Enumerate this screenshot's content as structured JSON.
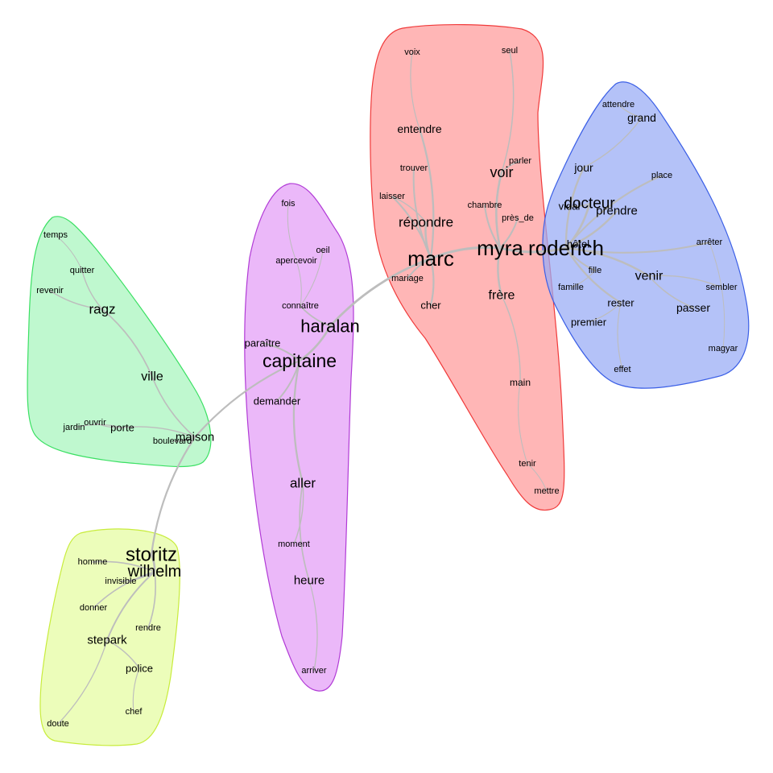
{
  "clusters": [
    {
      "id": "red",
      "fill": "#ff9a9a",
      "stroke": "#f03a3a"
    },
    {
      "id": "blue",
      "fill": "#97abf5",
      "stroke": "#3b5fe6"
    },
    {
      "id": "purple",
      "fill": "#e39cf7",
      "stroke": "#b13bd6"
    },
    {
      "id": "green",
      "fill": "#a6f5bd",
      "stroke": "#3be063"
    },
    {
      "id": "yellow",
      "fill": "#e5fca0",
      "stroke": "#c8ec3c"
    }
  ],
  "words": [
    {
      "id": "voix",
      "text": "voix",
      "cluster": "red"
    },
    {
      "id": "seul",
      "text": "seul",
      "cluster": "red"
    },
    {
      "id": "entendre",
      "text": "entendre",
      "cluster": "red"
    },
    {
      "id": "trouver",
      "text": "trouver",
      "cluster": "red"
    },
    {
      "id": "parler",
      "text": "parler",
      "cluster": "red"
    },
    {
      "id": "voir",
      "text": "voir",
      "cluster": "red"
    },
    {
      "id": "laisser",
      "text": "laisser",
      "cluster": "red"
    },
    {
      "id": "chambre",
      "text": "chambre",
      "cluster": "red"
    },
    {
      "id": "pres_de",
      "text": "près_de",
      "cluster": "red"
    },
    {
      "id": "repondre",
      "text": "répondre",
      "cluster": "red"
    },
    {
      "id": "marc",
      "text": "marc",
      "cluster": "red"
    },
    {
      "id": "myra",
      "text": "myra",
      "cluster": "red"
    },
    {
      "id": "mariage",
      "text": "mariage",
      "cluster": "red"
    },
    {
      "id": "cher",
      "text": "cher",
      "cluster": "red"
    },
    {
      "id": "frere",
      "text": "frère",
      "cluster": "red"
    },
    {
      "id": "main",
      "text": "main",
      "cluster": "red"
    },
    {
      "id": "tenir",
      "text": "tenir",
      "cluster": "red"
    },
    {
      "id": "mettre",
      "text": "mettre",
      "cluster": "red"
    },
    {
      "id": "attendre",
      "text": "attendre",
      "cluster": "blue"
    },
    {
      "id": "grand",
      "text": "grand",
      "cluster": "blue"
    },
    {
      "id": "jour",
      "text": "jour",
      "cluster": "blue"
    },
    {
      "id": "place",
      "text": "place",
      "cluster": "blue"
    },
    {
      "id": "docteur",
      "text": "docteur",
      "cluster": "blue"
    },
    {
      "id": "vidal",
      "text": "vidal",
      "cluster": "blue"
    },
    {
      "id": "prendre",
      "text": "prendre",
      "cluster": "blue"
    },
    {
      "id": "roderich",
      "text": "roderich",
      "cluster": "blue"
    },
    {
      "id": "hotel",
      "text": "hôtel",
      "cluster": "blue"
    },
    {
      "id": "arreter",
      "text": "arrêter",
      "cluster": "blue"
    },
    {
      "id": "fille",
      "text": "fille",
      "cluster": "blue"
    },
    {
      "id": "venir",
      "text": "venir",
      "cluster": "blue"
    },
    {
      "id": "famille",
      "text": "famille",
      "cluster": "blue"
    },
    {
      "id": "sembler",
      "text": "sembler",
      "cluster": "blue"
    },
    {
      "id": "rester",
      "text": "rester",
      "cluster": "blue"
    },
    {
      "id": "passer",
      "text": "passer",
      "cluster": "blue"
    },
    {
      "id": "premier",
      "text": "premier",
      "cluster": "blue"
    },
    {
      "id": "magyar",
      "text": "magyar",
      "cluster": "blue"
    },
    {
      "id": "effet",
      "text": "effet",
      "cluster": "blue"
    },
    {
      "id": "fois",
      "text": "fois",
      "cluster": "purple"
    },
    {
      "id": "oeil",
      "text": "oeil",
      "cluster": "purple"
    },
    {
      "id": "apercevoir",
      "text": "apercevoir",
      "cluster": "purple"
    },
    {
      "id": "connaitre",
      "text": "connaître",
      "cluster": "purple"
    },
    {
      "id": "haralan",
      "text": "haralan",
      "cluster": "purple"
    },
    {
      "id": "paraitre",
      "text": "paraître",
      "cluster": "purple"
    },
    {
      "id": "capitaine",
      "text": "capitaine",
      "cluster": "purple"
    },
    {
      "id": "demander",
      "text": "demander",
      "cluster": "purple"
    },
    {
      "id": "aller",
      "text": "aller",
      "cluster": "purple"
    },
    {
      "id": "moment",
      "text": "moment",
      "cluster": "purple"
    },
    {
      "id": "heure",
      "text": "heure",
      "cluster": "purple"
    },
    {
      "id": "arriver",
      "text": "arriver",
      "cluster": "purple"
    },
    {
      "id": "temps",
      "text": "temps",
      "cluster": "green"
    },
    {
      "id": "quitter",
      "text": "quitter",
      "cluster": "green"
    },
    {
      "id": "revenir",
      "text": "revenir",
      "cluster": "green"
    },
    {
      "id": "ragz",
      "text": "ragz",
      "cluster": "green"
    },
    {
      "id": "ville",
      "text": "ville",
      "cluster": "green"
    },
    {
      "id": "jardin",
      "text": "jardin",
      "cluster": "green"
    },
    {
      "id": "ouvrir",
      "text": "ouvrir",
      "cluster": "green"
    },
    {
      "id": "porte",
      "text": "porte",
      "cluster": "green"
    },
    {
      "id": "maison",
      "text": "maison",
      "cluster": "green"
    },
    {
      "id": "boulevard",
      "text": "boulevard",
      "cluster": "green"
    },
    {
      "id": "storitz",
      "text": "storitz",
      "cluster": "yellow"
    },
    {
      "id": "homme",
      "text": "homme",
      "cluster": "yellow"
    },
    {
      "id": "wilhelm",
      "text": "wilhelm",
      "cluster": "yellow"
    },
    {
      "id": "invisible",
      "text": "invisible",
      "cluster": "yellow"
    },
    {
      "id": "donner",
      "text": "donner",
      "cluster": "yellow"
    },
    {
      "id": "rendre",
      "text": "rendre",
      "cluster": "yellow"
    },
    {
      "id": "stepark",
      "text": "stepark",
      "cluster": "yellow"
    },
    {
      "id": "police",
      "text": "police",
      "cluster": "yellow"
    },
    {
      "id": "chef",
      "text": "chef",
      "cluster": "yellow"
    },
    {
      "id": "doute",
      "text": "doute",
      "cluster": "yellow"
    }
  ],
  "edges": [
    [
      "marc",
      "myra"
    ],
    [
      "myra",
      "roderich"
    ],
    [
      "marc",
      "repondre"
    ],
    [
      "marc",
      "mariage"
    ],
    [
      "marc",
      "cher"
    ],
    [
      "marc",
      "laisser"
    ],
    [
      "marc",
      "trouver"
    ],
    [
      "marc",
      "entendre"
    ],
    [
      "entendre",
      "voix"
    ],
    [
      "repondre",
      "laisser"
    ],
    [
      "myra",
      "voir"
    ],
    [
      "myra",
      "frere"
    ],
    [
      "myra",
      "chambre"
    ],
    [
      "myra",
      "pres_de"
    ],
    [
      "voir",
      "parler"
    ],
    [
      "voir",
      "seul"
    ],
    [
      "frere",
      "main"
    ],
    [
      "main",
      "tenir"
    ],
    [
      "tenir",
      "mettre"
    ],
    [
      "marc",
      "haralan"
    ],
    [
      "roderich",
      "hotel"
    ],
    [
      "roderich",
      "docteur"
    ],
    [
      "docteur",
      "vidal"
    ],
    [
      "roderich",
      "prendre"
    ],
    [
      "roderich",
      "venir"
    ],
    [
      "venir",
      "passer"
    ],
    [
      "venir",
      "sembler"
    ],
    [
      "roderich",
      "fille"
    ],
    [
      "fille",
      "famille"
    ],
    [
      "roderich",
      "rester"
    ],
    [
      "rester",
      "premier"
    ],
    [
      "rester",
      "effet"
    ],
    [
      "roderich",
      "place"
    ],
    [
      "roderich",
      "arreter"
    ],
    [
      "arreter",
      "magyar"
    ],
    [
      "jour",
      "grand"
    ],
    [
      "grand",
      "attendre"
    ],
    [
      "jour",
      "roderich"
    ],
    [
      "haralan",
      "capitaine"
    ],
    [
      "capitaine",
      "paraitre"
    ],
    [
      "haralan",
      "connaitre"
    ],
    [
      "connaitre",
      "apercevoir"
    ],
    [
      "apercevoir",
      "fois"
    ],
    [
      "connaitre",
      "oeil"
    ],
    [
      "capitaine",
      "demander"
    ],
    [
      "capitaine",
      "aller"
    ],
    [
      "aller",
      "moment"
    ],
    [
      "aller",
      "heure"
    ],
    [
      "heure",
      "arriver"
    ],
    [
      "capitaine",
      "maison"
    ],
    [
      "maison",
      "ville"
    ],
    [
      "ville",
      "ragz"
    ],
    [
      "ragz",
      "quitter"
    ],
    [
      "quitter",
      "temps"
    ],
    [
      "ragz",
      "revenir"
    ],
    [
      "maison",
      "porte"
    ],
    [
      "porte",
      "ouvrir"
    ],
    [
      "porte",
      "jardin"
    ],
    [
      "maison",
      "boulevard"
    ],
    [
      "maison",
      "storitz"
    ],
    [
      "storitz",
      "wilhelm"
    ],
    [
      "wilhelm",
      "homme"
    ],
    [
      "wilhelm",
      "invisible"
    ],
    [
      "wilhelm",
      "donner"
    ],
    [
      "wilhelm",
      "rendre"
    ],
    [
      "wilhelm",
      "stepark"
    ],
    [
      "stepark",
      "police"
    ],
    [
      "police",
      "chef"
    ],
    [
      "stepark",
      "doute"
    ]
  ]
}
